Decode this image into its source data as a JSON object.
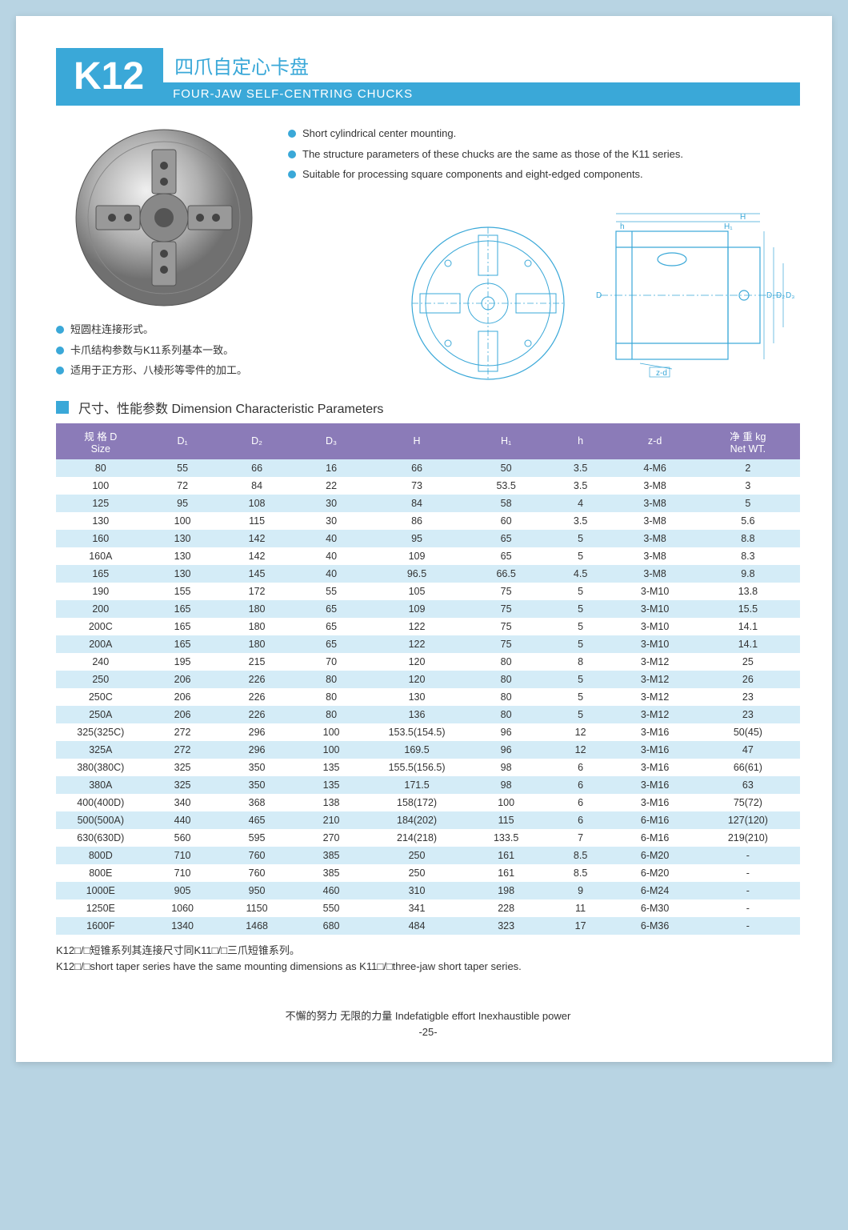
{
  "header": {
    "code": "K12",
    "title_cn": "四爪自定心卡盘",
    "title_en": "FOUR-JAW  SELF-CENTRING  CHUCKS"
  },
  "bullets_en": [
    "Short cylindrical center mounting.",
    "The structure parameters of these chucks are the same as those of the K11 series.",
    "Suitable for processing square components and eight-edged components."
  ],
  "bullets_cn": [
    "短圆柱连接形式。",
    "卡爪结构参数与K11系列基本一致。",
    "适用于正方形、八棱形等零件的加工。"
  ],
  "diagram_labels": {
    "H": "H",
    "H1": "H₁",
    "h": "h",
    "D": "D",
    "D1": "D₁",
    "D2": "D₂",
    "D3": "D₃",
    "zd": "z-d"
  },
  "section_title": "尺寸、性能参数    Dimension  Characteristic Parameters",
  "table": {
    "columns": [
      "规 格 D\nSize",
      "D₁",
      "D₂",
      "D₃",
      "H",
      "H₁",
      "h",
      "z-d",
      "净 重 kg\nNet WT."
    ],
    "col_widths_pct": [
      12,
      10,
      10,
      10,
      13,
      11,
      9,
      11,
      14
    ],
    "rows": [
      [
        "80",
        "55",
        "66",
        "16",
        "66",
        "50",
        "3.5",
        "4-M6",
        "2"
      ],
      [
        "100",
        "72",
        "84",
        "22",
        "73",
        "53.5",
        "3.5",
        "3-M8",
        "3"
      ],
      [
        "125",
        "95",
        "108",
        "30",
        "84",
        "58",
        "4",
        "3-M8",
        "5"
      ],
      [
        "130",
        "100",
        "115",
        "30",
        "86",
        "60",
        "3.5",
        "3-M8",
        "5.6"
      ],
      [
        "160",
        "130",
        "142",
        "40",
        "95",
        "65",
        "5",
        "3-M8",
        "8.8"
      ],
      [
        "160A",
        "130",
        "142",
        "40",
        "109",
        "65",
        "5",
        "3-M8",
        "8.3"
      ],
      [
        "165",
        "130",
        "145",
        "40",
        "96.5",
        "66.5",
        "4.5",
        "3-M8",
        "9.8"
      ],
      [
        "190",
        "155",
        "172",
        "55",
        "105",
        "75",
        "5",
        "3-M10",
        "13.8"
      ],
      [
        "200",
        "165",
        "180",
        "65",
        "109",
        "75",
        "5",
        "3-M10",
        "15.5"
      ],
      [
        "200C",
        "165",
        "180",
        "65",
        "122",
        "75",
        "5",
        "3-M10",
        "14.1"
      ],
      [
        "200A",
        "165",
        "180",
        "65",
        "122",
        "75",
        "5",
        "3-M10",
        "14.1"
      ],
      [
        "240",
        "195",
        "215",
        "70",
        "120",
        "80",
        "8",
        "3-M12",
        "25"
      ],
      [
        "250",
        "206",
        "226",
        "80",
        "120",
        "80",
        "5",
        "3-M12",
        "26"
      ],
      [
        "250C",
        "206",
        "226",
        "80",
        "130",
        "80",
        "5",
        "3-M12",
        "23"
      ],
      [
        "250A",
        "206",
        "226",
        "80",
        "136",
        "80",
        "5",
        "3-M12",
        "23"
      ],
      [
        "325(325C)",
        "272",
        "296",
        "100",
        "153.5(154.5)",
        "96",
        "12",
        "3-M16",
        "50(45)"
      ],
      [
        "325A",
        "272",
        "296",
        "100",
        "169.5",
        "96",
        "12",
        "3-M16",
        "47"
      ],
      [
        "380(380C)",
        "325",
        "350",
        "135",
        "155.5(156.5)",
        "98",
        "6",
        "3-M16",
        "66(61)"
      ],
      [
        "380A",
        "325",
        "350",
        "135",
        "171.5",
        "98",
        "6",
        "3-M16",
        "63"
      ],
      [
        "400(400D)",
        "340",
        "368",
        "138",
        "158(172)",
        "100",
        "6",
        "3-M16",
        "75(72)"
      ],
      [
        "500(500A)",
        "440",
        "465",
        "210",
        "184(202)",
        "115",
        "6",
        "6-M16",
        "127(120)"
      ],
      [
        "630(630D)",
        "560",
        "595",
        "270",
        "214(218)",
        "133.5",
        "7",
        "6-M16",
        "219(210)"
      ],
      [
        "800D",
        "710",
        "760",
        "385",
        "250",
        "161",
        "8.5",
        "6-M20",
        "-"
      ],
      [
        "800E",
        "710",
        "760",
        "385",
        "250",
        "161",
        "8.5",
        "6-M20",
        "-"
      ],
      [
        "1000E",
        "905",
        "950",
        "460",
        "310",
        "198",
        "9",
        "6-M24",
        "-"
      ],
      [
        "1250E",
        "1060",
        "1150",
        "550",
        "341",
        "228",
        "11",
        "6-M30",
        "-"
      ],
      [
        "1600F",
        "1340",
        "1468",
        "680",
        "484",
        "323",
        "17",
        "6-M36",
        "-"
      ]
    ]
  },
  "footnote_cn": "K12□/□短锥系列其连接尺寸同K11□/□三爪短锥系列。",
  "footnote_en": "K12□/□short taper series have the same mounting dimensions as K11□/□three-jaw short taper series.",
  "footer_motto": "不懈的努力    无限的力量    Indefatigble effort  Inexhaustible power",
  "page_num": "-25-",
  "colors": {
    "accent": "#3aa8d8",
    "table_header": "#8b7bb8",
    "row_stripe": "#d4ecf7",
    "page_bg": "#b8d4e3"
  }
}
